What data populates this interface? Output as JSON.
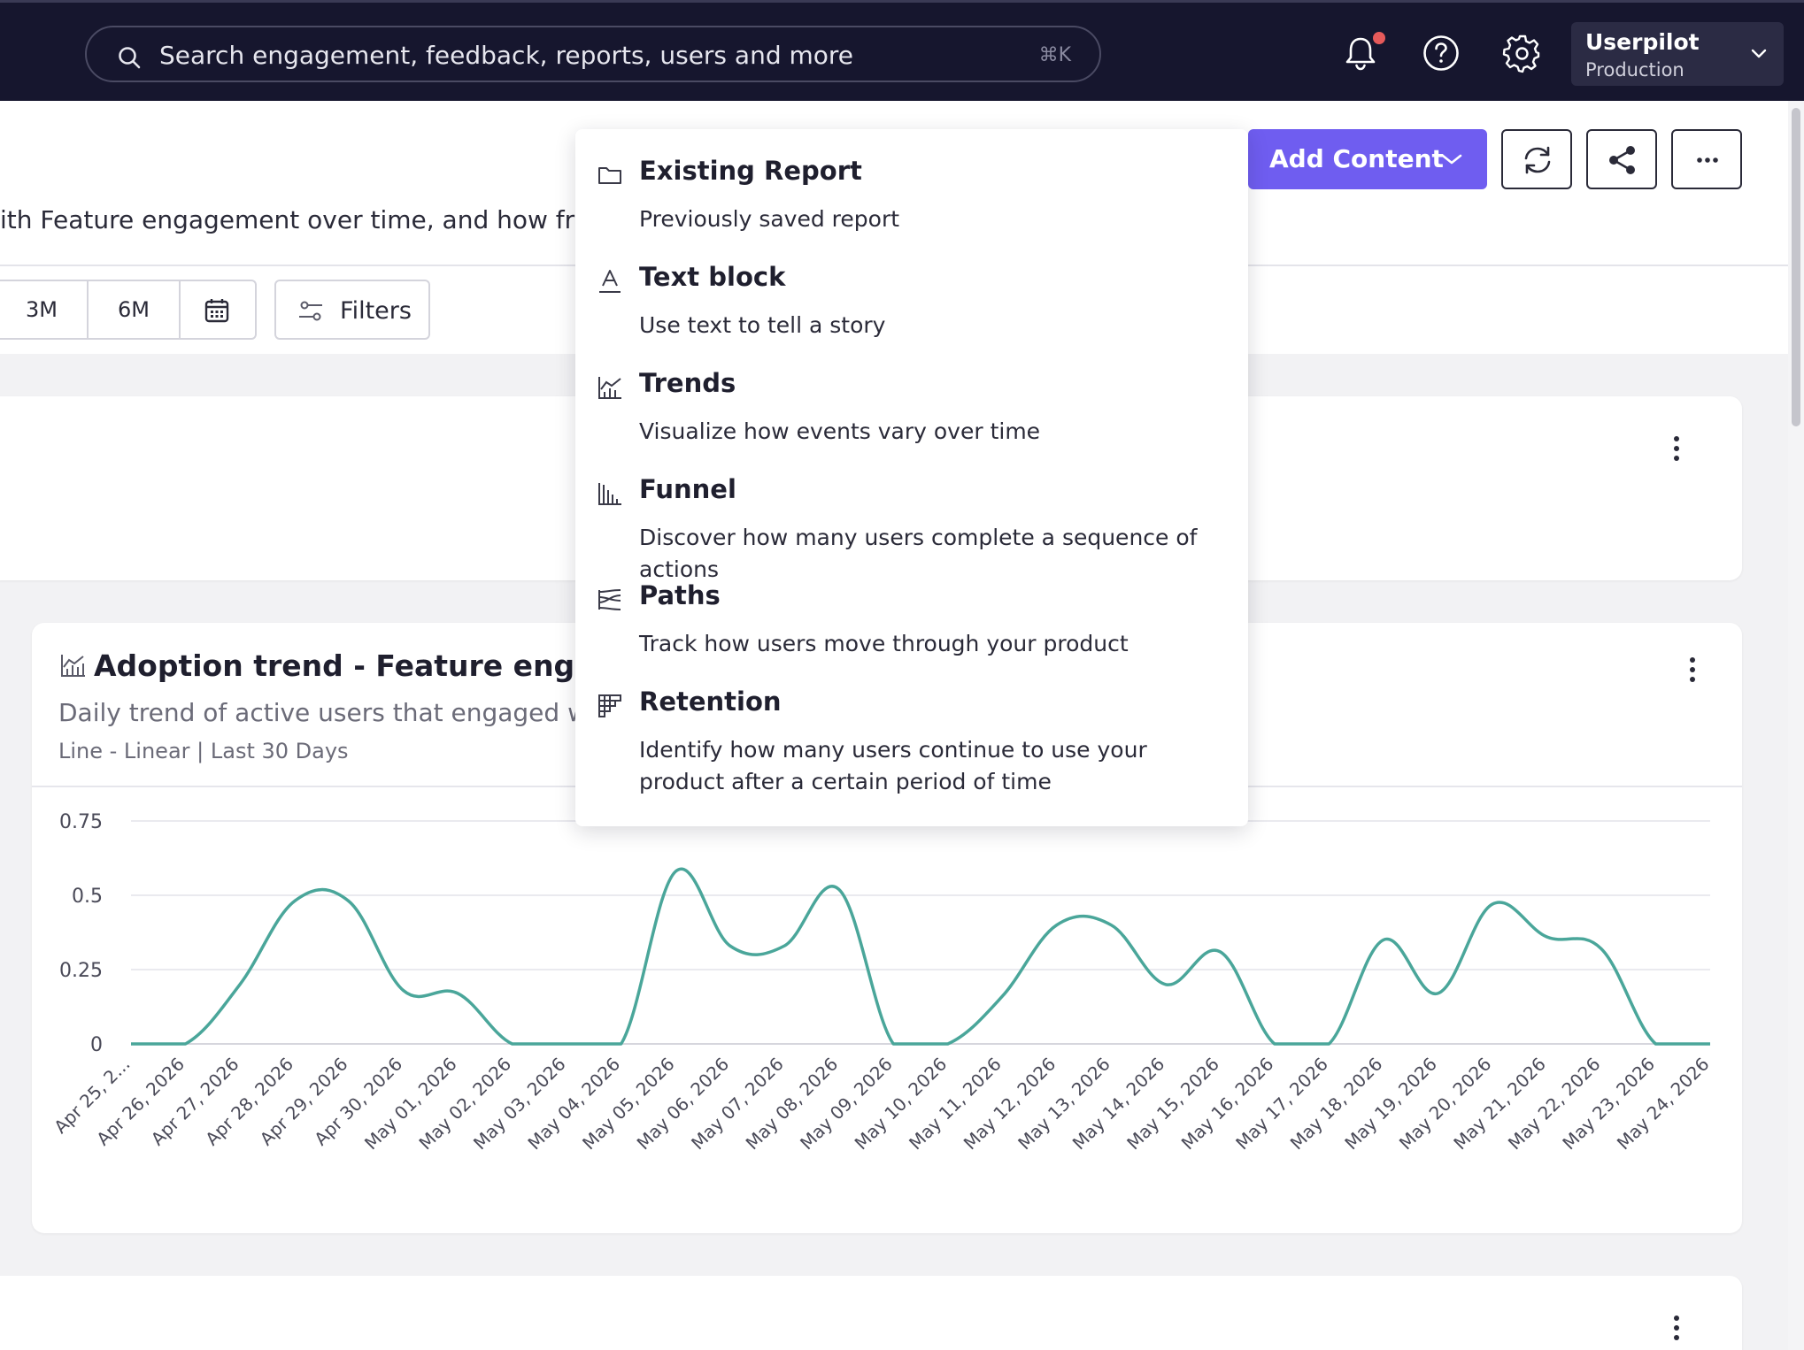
{
  "topbar": {
    "search_placeholder": "Search engagement, feedback, reports, users and more",
    "search_shortcut": "⌘K",
    "workspace_name": "Userpilot",
    "workspace_env": "Production"
  },
  "header": {
    "description": "ith Feature engagement over time, and how frequ",
    "add_content_label": "Add Content",
    "ranges": [
      "3M",
      "6M"
    ],
    "filters_label": "Filters"
  },
  "dropdown": {
    "items": [
      {
        "title": "Existing Report",
        "desc": "Previously saved report",
        "icon": "folder-icon"
      },
      {
        "title": "Text block",
        "desc": "Use text to tell a story",
        "icon": "text-icon"
      },
      {
        "title": "Trends",
        "desc": "Visualize how events vary over time",
        "icon": "trends-icon"
      },
      {
        "title": "Funnel",
        "desc": "Discover how many users complete a sequence of actions",
        "icon": "funnel-icon"
      },
      {
        "title": "Paths",
        "desc": "Track how users move through your product",
        "icon": "paths-icon"
      },
      {
        "title": "Retention",
        "desc": "Identify how many users continue to use your product after a certain period of time",
        "icon": "retention-icon"
      }
    ]
  },
  "card": {
    "title": "Adoption trend - Feature engageme",
    "description": "Daily trend of active users that engaged with",
    "meta": "Line - Linear | Last 30 Days"
  },
  "chart_data": {
    "type": "line",
    "title": "",
    "xlabel": "",
    "ylabel": "",
    "ylim": [
      0,
      0.75
    ],
    "yticks": [
      "0",
      "0.25",
      "0.5",
      "0.75"
    ],
    "grid": true,
    "color": "#4aa69a",
    "x": [
      "Apr 25, 2...",
      "Apr 26, 2026",
      "Apr 27, 2026",
      "Apr 28, 2026",
      "Apr 29, 2026",
      "Apr 30, 2026",
      "May 01, 2026",
      "May 02, 2026",
      "May 03, 2026",
      "May 04, 2026",
      "May 05, 2026",
      "May 06, 2026",
      "May 07, 2026",
      "May 08, 2026",
      "May 09, 2026",
      "May 10, 2026",
      "May 11, 2026",
      "May 12, 2026",
      "May 13, 2026",
      "May 14, 2026",
      "May 15, 2026",
      "May 16, 2026",
      "May 17, 2026",
      "May 18, 2026",
      "May 19, 2026",
      "May 20, 2026",
      "May 21, 2026",
      "May 22, 2026",
      "May 23, 2026",
      "May 24, 2026"
    ],
    "values": [
      0,
      0,
      0.2,
      0.48,
      0.48,
      0.18,
      0.17,
      0,
      0,
      0,
      0.58,
      0.33,
      0.33,
      0.52,
      0,
      0,
      0.16,
      0.4,
      0.4,
      0.2,
      0.31,
      0,
      0,
      0.35,
      0.17,
      0.47,
      0.36,
      0.32,
      0,
      0
    ]
  }
}
